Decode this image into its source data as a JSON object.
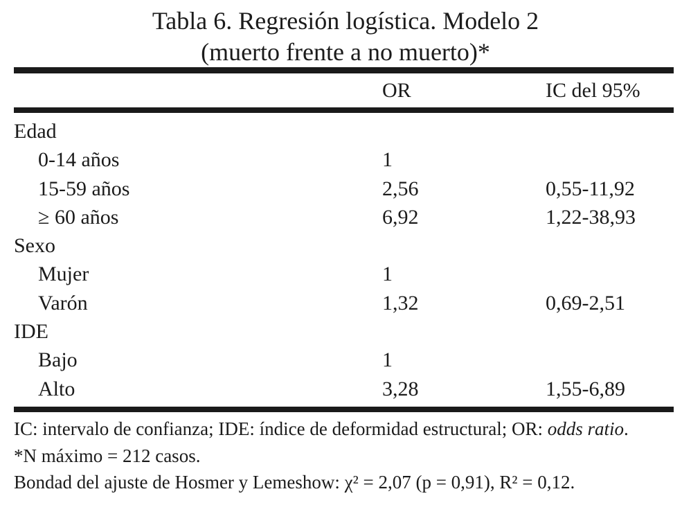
{
  "title": {
    "line1": "Tabla 6. Regresión logística. Modelo 2",
    "line2": "(muerto frente a no muerto)*"
  },
  "table": {
    "col_or": "OR",
    "col_ic": "IC del 95%",
    "rows": [
      {
        "label": "Edad",
        "indent": false,
        "or": "",
        "ic": ""
      },
      {
        "label": "0-14 años",
        "indent": true,
        "or": "1",
        "ic": ""
      },
      {
        "label": "15-59 años",
        "indent": true,
        "or": "2,56",
        "ic": "0,55-11,92"
      },
      {
        "label": "≥ 60 años",
        "indent": true,
        "or": "6,92",
        "ic": "1,22-38,93"
      },
      {
        "label": "Sexo",
        "indent": false,
        "or": "",
        "ic": ""
      },
      {
        "label": "Mujer",
        "indent": true,
        "or": "1",
        "ic": ""
      },
      {
        "label": "Varón",
        "indent": true,
        "or": "1,32",
        "ic": "0,69-2,51"
      },
      {
        "label": "IDE",
        "indent": false,
        "or": "",
        "ic": ""
      },
      {
        "label": "Bajo",
        "indent": true,
        "or": "1",
        "ic": ""
      },
      {
        "label": "Alto",
        "indent": true,
        "or": "3,28",
        "ic": "1,55-6,89"
      }
    ]
  },
  "footnotes": {
    "abbrev_text": "IC: intervalo de confianza; IDE: índice de deformidad estructural; OR: ",
    "abbrev_italic": "odds ratio",
    "abbrev_end": ".",
    "n_note": "*N máximo = 212 casos.",
    "goodness": "Bondad del ajuste de Hosmer y Lemeshow: χ² = 2,07 (p = 0,91), R² = 0,12."
  },
  "colors": {
    "text": "#1b1b1b",
    "rule": "#1a1a1a",
    "background": "#ffffff"
  }
}
